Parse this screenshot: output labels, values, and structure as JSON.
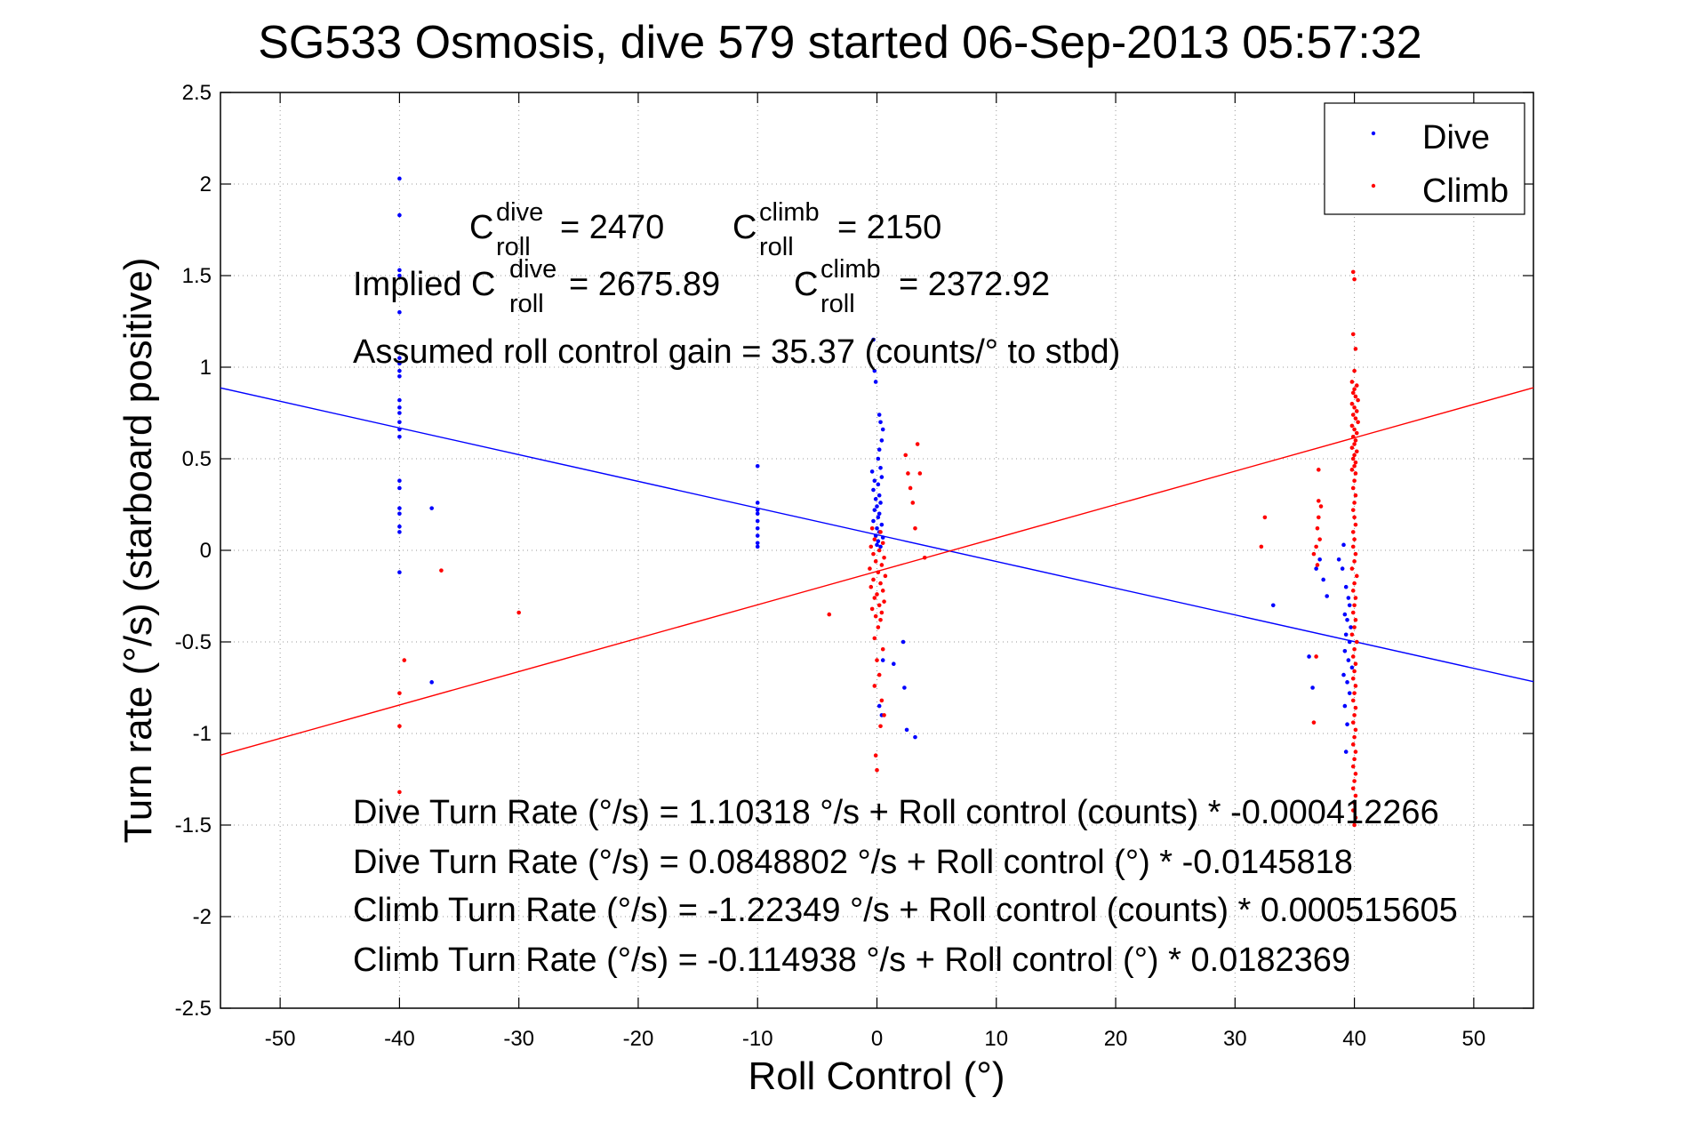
{
  "chart_data": {
    "type": "scatter",
    "title": "SG533 Osmosis, dive 579 started 06-Sep-2013 05:57:32",
    "xlabel": "Roll Control (°)",
    "ylabel": "Turn rate (°/s)  (starboard positive)",
    "xlim": [
      -55,
      55
    ],
    "ylim": [
      -2.5,
      2.5
    ],
    "xticks": [
      -50,
      -40,
      -30,
      -20,
      -10,
      0,
      10,
      20,
      30,
      40,
      50
    ],
    "yticks": [
      -2.5,
      -2,
      -1.5,
      -1,
      -0.5,
      0,
      0.5,
      1,
      1.5,
      2,
      2.5
    ],
    "grid": "dotted",
    "legend_position": "top-right",
    "series": [
      {
        "name": "Dive",
        "color": "#0000ff",
        "marker": "point",
        "points": [
          [
            -40,
            2.03
          ],
          [
            -40,
            1.83
          ],
          [
            -40,
            1.53
          ],
          [
            -40,
            1.5
          ],
          [
            -40,
            1.3
          ],
          [
            -40,
            1.05
          ],
          [
            -40,
            1.02
          ],
          [
            -40,
            0.98
          ],
          [
            -40,
            0.95
          ],
          [
            -40,
            0.82
          ],
          [
            -40,
            0.78
          ],
          [
            -40,
            0.75
          ],
          [
            -40,
            0.7
          ],
          [
            -40,
            0.66
          ],
          [
            -40,
            0.62
          ],
          [
            -40,
            0.38
          ],
          [
            -40,
            0.34
          ],
          [
            -40,
            0.23
          ],
          [
            -40,
            0.2
          ],
          [
            -40,
            0.13
          ],
          [
            -40,
            0.1
          ],
          [
            -40,
            -0.12
          ],
          [
            -37.3,
            0.23
          ],
          [
            -37.3,
            -0.72
          ],
          [
            -10,
            0.46
          ],
          [
            -10,
            0.26
          ],
          [
            -10,
            0.22
          ],
          [
            -10,
            0.2
          ],
          [
            -10,
            0.16
          ],
          [
            -10,
            0.12
          ],
          [
            -10,
            0.08
          ],
          [
            -10,
            0.04
          ],
          [
            -10,
            0.02
          ],
          [
            -0.3,
            1.15
          ],
          [
            -0.2,
            0.98
          ],
          [
            -0.1,
            0.92
          ],
          [
            0.2,
            0.74
          ],
          [
            0.3,
            0.7
          ],
          [
            0.5,
            0.66
          ],
          [
            0.4,
            0.6
          ],
          [
            0.2,
            0.55
          ],
          [
            0.1,
            0.5
          ],
          [
            0.3,
            0.45
          ],
          [
            -0.4,
            0.43
          ],
          [
            0.4,
            0.4
          ],
          [
            -0.2,
            0.38
          ],
          [
            0.1,
            0.36
          ],
          [
            -0.3,
            0.33
          ],
          [
            0.2,
            0.3
          ],
          [
            -0.1,
            0.28
          ],
          [
            0.3,
            0.26
          ],
          [
            0,
            0.24
          ],
          [
            -0.2,
            0.22
          ],
          [
            0.2,
            0.2
          ],
          [
            0.1,
            0.18
          ],
          [
            -0.3,
            0.16
          ],
          [
            0.4,
            0.14
          ],
          [
            0,
            0.12
          ],
          [
            0.2,
            0.1
          ],
          [
            -0.1,
            0.08
          ],
          [
            0.5,
            0.07
          ],
          [
            0.1,
            0.05
          ],
          [
            0,
            0.03
          ],
          [
            0.3,
            0.02
          ],
          [
            2.2,
            -0.5
          ],
          [
            0.5,
            -0.6
          ],
          [
            2.3,
            -0.75
          ],
          [
            1.4,
            -0.62
          ],
          [
            0.2,
            -0.85
          ],
          [
            0.4,
            -0.9
          ],
          [
            2.5,
            -0.98
          ],
          [
            3.2,
            -1.02
          ],
          [
            33.2,
            -0.3
          ],
          [
            36.2,
            -0.58
          ],
          [
            36.5,
            -0.75
          ],
          [
            36.8,
            -0.1
          ],
          [
            37.1,
            -0.05
          ],
          [
            37.4,
            -0.16
          ],
          [
            37.7,
            -0.25
          ],
          [
            38.7,
            -0.05
          ],
          [
            39.0,
            -0.1
          ],
          [
            39.1,
            0.03
          ],
          [
            39.3,
            -0.2
          ],
          [
            39.5,
            -0.26
          ],
          [
            39.6,
            -0.3
          ],
          [
            39.2,
            -0.35
          ],
          [
            39.4,
            -0.38
          ],
          [
            39.7,
            -0.42
          ],
          [
            39.3,
            -0.46
          ],
          [
            39.6,
            -0.5
          ],
          [
            39.2,
            -0.55
          ],
          [
            39.5,
            -0.6
          ],
          [
            39.8,
            -0.64
          ],
          [
            39.1,
            -0.68
          ],
          [
            39.4,
            -0.72
          ],
          [
            39.6,
            -0.78
          ],
          [
            39.2,
            -0.85
          ],
          [
            39.4,
            -0.95
          ],
          [
            39.3,
            -1.1
          ]
        ]
      },
      {
        "name": "Climb",
        "color": "#ff0000",
        "marker": "point",
        "points": [
          [
            -40,
            -0.78
          ],
          [
            -40,
            -0.96
          ],
          [
            -40,
            -1.32
          ],
          [
            -39.6,
            -0.6
          ],
          [
            -36.5,
            -0.11
          ],
          [
            -30,
            -0.34
          ],
          [
            -4,
            -0.35
          ],
          [
            -0.4,
            0.12
          ],
          [
            0.3,
            0.1
          ],
          [
            -0.2,
            0.06
          ],
          [
            0.5,
            0.04
          ],
          [
            -0.5,
            0.02
          ],
          [
            0.2,
            0.0
          ],
          [
            -0.3,
            -0.02
          ],
          [
            0.6,
            -0.04
          ],
          [
            -0.1,
            -0.06
          ],
          [
            0.4,
            -0.08
          ],
          [
            -0.6,
            -0.1
          ],
          [
            0.1,
            -0.12
          ],
          [
            0.7,
            -0.14
          ],
          [
            -0.3,
            -0.16
          ],
          [
            0.3,
            -0.18
          ],
          [
            -0.5,
            -0.2
          ],
          [
            0.5,
            -0.22
          ],
          [
            0,
            -0.24
          ],
          [
            -0.2,
            -0.26
          ],
          [
            0.6,
            -0.28
          ],
          [
            0.2,
            -0.3
          ],
          [
            -0.4,
            -0.32
          ],
          [
            0.4,
            -0.34
          ],
          [
            -0.1,
            -0.36
          ],
          [
            0.3,
            -0.38
          ],
          [
            0.1,
            -0.42
          ],
          [
            -0.2,
            -0.48
          ],
          [
            0.5,
            -0.54
          ],
          [
            0,
            -0.6
          ],
          [
            0.2,
            -0.68
          ],
          [
            -0.2,
            -0.74
          ],
          [
            0.4,
            -0.82
          ],
          [
            0.6,
            -0.9
          ],
          [
            0.3,
            -0.96
          ],
          [
            -0.1,
            -1.12
          ],
          [
            0,
            -1.2
          ],
          [
            2.4,
            0.52
          ],
          [
            2.6,
            0.42
          ],
          [
            2.8,
            0.34
          ],
          [
            3.0,
            0.26
          ],
          [
            3.2,
            0.12
          ],
          [
            3.4,
            0.58
          ],
          [
            3.6,
            0.42
          ],
          [
            4,
            -0.04
          ],
          [
            32.2,
            0.02
          ],
          [
            32.5,
            0.18
          ],
          [
            36.6,
            -0.94
          ],
          [
            36.8,
            -0.58
          ],
          [
            37.0,
            0.44
          ],
          [
            37.0,
            0.27
          ],
          [
            37.2,
            0.24
          ],
          [
            37.0,
            0.18
          ],
          [
            36.9,
            0.12
          ],
          [
            37.1,
            0.06
          ],
          [
            36.8,
            0.02
          ],
          [
            36.6,
            -0.02
          ],
          [
            36.9,
            -0.08
          ],
          [
            39.9,
            1.52
          ],
          [
            40.0,
            1.48
          ],
          [
            39.9,
            1.18
          ],
          [
            40.1,
            1.1
          ],
          [
            40.0,
            0.98
          ],
          [
            39.8,
            0.92
          ],
          [
            40.2,
            0.9
          ],
          [
            40.0,
            0.88
          ],
          [
            39.9,
            0.86
          ],
          [
            40.1,
            0.84
          ],
          [
            40.3,
            0.82
          ],
          [
            39.8,
            0.8
          ],
          [
            40.0,
            0.78
          ],
          [
            40.2,
            0.76
          ],
          [
            39.9,
            0.74
          ],
          [
            40.1,
            0.72
          ],
          [
            40.3,
            0.7
          ],
          [
            39.8,
            0.68
          ],
          [
            40.0,
            0.66
          ],
          [
            40.2,
            0.64
          ],
          [
            39.9,
            0.62
          ],
          [
            40.1,
            0.6
          ],
          [
            40.0,
            0.58
          ],
          [
            39.8,
            0.56
          ],
          [
            40.2,
            0.54
          ],
          [
            40.0,
            0.52
          ],
          [
            39.9,
            0.5
          ],
          [
            40.1,
            0.48
          ],
          [
            40.0,
            0.46
          ],
          [
            39.8,
            0.44
          ],
          [
            40.1,
            0.42
          ],
          [
            40.0,
            0.38
          ],
          [
            39.9,
            0.34
          ],
          [
            40.1,
            0.3
          ],
          [
            40.0,
            0.26
          ],
          [
            39.9,
            0.22
          ],
          [
            40.0,
            0.18
          ],
          [
            40.1,
            0.14
          ],
          [
            39.9,
            0.1
          ],
          [
            40.0,
            0.06
          ],
          [
            39.9,
            0.02
          ],
          [
            40.1,
            -0.02
          ],
          [
            40.0,
            -0.06
          ],
          [
            39.8,
            -0.1
          ],
          [
            40.2,
            -0.14
          ],
          [
            40.0,
            -0.18
          ],
          [
            39.9,
            -0.22
          ],
          [
            40.1,
            -0.26
          ],
          [
            40.0,
            -0.3
          ],
          [
            39.9,
            -0.34
          ],
          [
            40.1,
            -0.38
          ],
          [
            40.0,
            -0.42
          ],
          [
            39.8,
            -0.46
          ],
          [
            40.2,
            -0.5
          ],
          [
            40.0,
            -0.54
          ],
          [
            39.9,
            -0.58
          ],
          [
            40.1,
            -0.62
          ],
          [
            40.0,
            -0.66
          ],
          [
            39.9,
            -0.7
          ],
          [
            40.1,
            -0.74
          ],
          [
            40.0,
            -0.78
          ],
          [
            39.9,
            -0.82
          ],
          [
            40.1,
            -0.86
          ],
          [
            40.0,
            -0.9
          ],
          [
            39.9,
            -0.94
          ],
          [
            40.1,
            -0.98
          ],
          [
            40.0,
            -1.02
          ],
          [
            39.9,
            -1.06
          ],
          [
            40.1,
            -1.1
          ],
          [
            40.0,
            -1.14
          ],
          [
            39.9,
            -1.18
          ],
          [
            40.1,
            -1.22
          ],
          [
            40.0,
            -1.26
          ],
          [
            39.9,
            -1.3
          ],
          [
            40.1,
            -1.34
          ],
          [
            40.0,
            -1.38
          ],
          [
            39.9,
            -1.42
          ],
          [
            40.1,
            -1.46
          ],
          [
            40.0,
            -1.5
          ]
        ]
      }
    ],
    "fit_lines": [
      {
        "name": "Dive",
        "color": "#0000ff",
        "intercept": 0.0848802,
        "slope": -0.0145818
      },
      {
        "name": "Climb",
        "color": "#ff0000",
        "intercept": -0.114938,
        "slope": 0.0182369
      }
    ],
    "annotations": {
      "c_dive_label": "= 2470",
      "c_climb_label": "= 2150",
      "implied_prefix": "Implied C",
      "implied_dive_value": "= 2675.89",
      "implied_climb_value": "= 2372.92",
      "c_symbol": "C",
      "sup_dive": "dive",
      "sup_climb": "climb",
      "sub_roll": "roll",
      "gain": "Assumed roll control gain = 35.37 (counts/° to stbd)",
      "eq1": "Dive Turn Rate (°/s) = 1.10318 °/s + Roll control (counts) * -0.000412266",
      "eq2": "Dive Turn Rate (°/s) = 0.0848802 °/s + Roll control (°) * -0.0145818",
      "eq3": "Climb Turn Rate (°/s) = -1.22349 °/s + Roll control (counts) * 0.000515605",
      "eq4": "Climb Turn Rate (°/s) = -0.114938 °/s + Roll control (°) * 0.0182369"
    }
  }
}
